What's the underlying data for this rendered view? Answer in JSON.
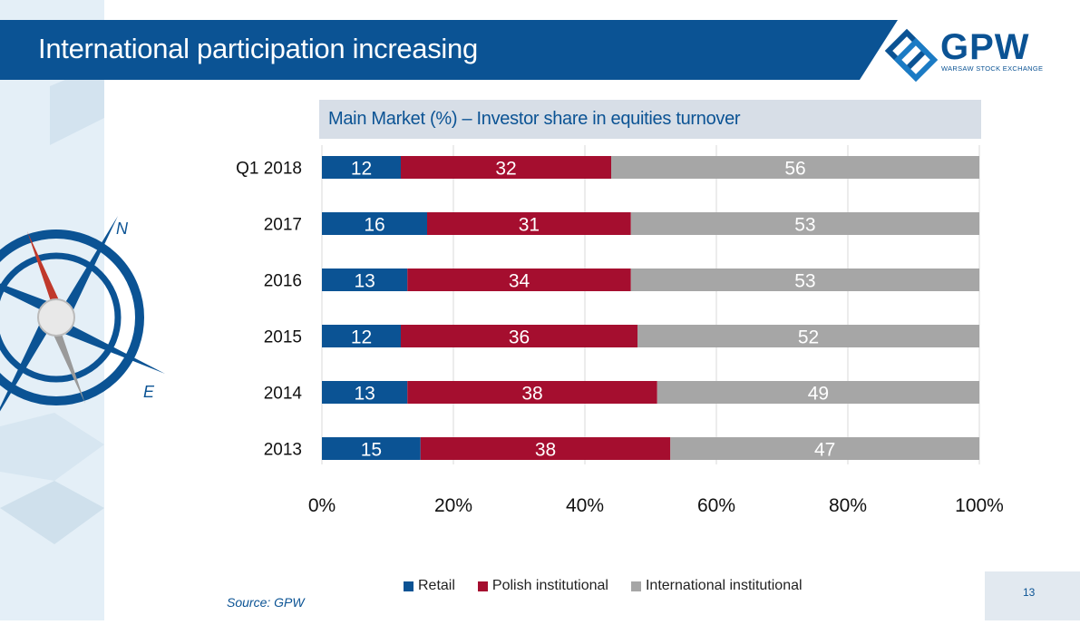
{
  "slide": {
    "title": "International participation increasing",
    "source": "Source: GPW",
    "page_number": "13"
  },
  "logo": {
    "name": "GPW",
    "subtitle": "WARSAW STOCK EXCHANGE"
  },
  "compass": {
    "north_label": "N",
    "east_label": "E"
  },
  "colors": {
    "brand_blue": "#0b5394",
    "retail": "#0b5394",
    "polish_institutional": "#a50e2f",
    "international_institutional": "#a6a6a6"
  },
  "chart_data": {
    "type": "bar",
    "orientation": "horizontal",
    "stacked": "percent",
    "title": "Main Market (%) – Investor share in equities turnover",
    "categories": [
      "Q1 2018",
      "2017",
      "2016",
      "2015",
      "2014",
      "2013"
    ],
    "series": [
      {
        "name": "Retail",
        "values": [
          12,
          16,
          13,
          12,
          13,
          15
        ]
      },
      {
        "name": "Polish institutional",
        "values": [
          32,
          31,
          34,
          36,
          38,
          38
        ]
      },
      {
        "name": "International institutional",
        "values": [
          56,
          53,
          53,
          52,
          49,
          47
        ]
      }
    ],
    "x_ticks": [
      "0%",
      "20%",
      "40%",
      "60%",
      "80%",
      "100%"
    ],
    "xlim": [
      0,
      100
    ],
    "grid": true,
    "legend_position": "bottom"
  }
}
